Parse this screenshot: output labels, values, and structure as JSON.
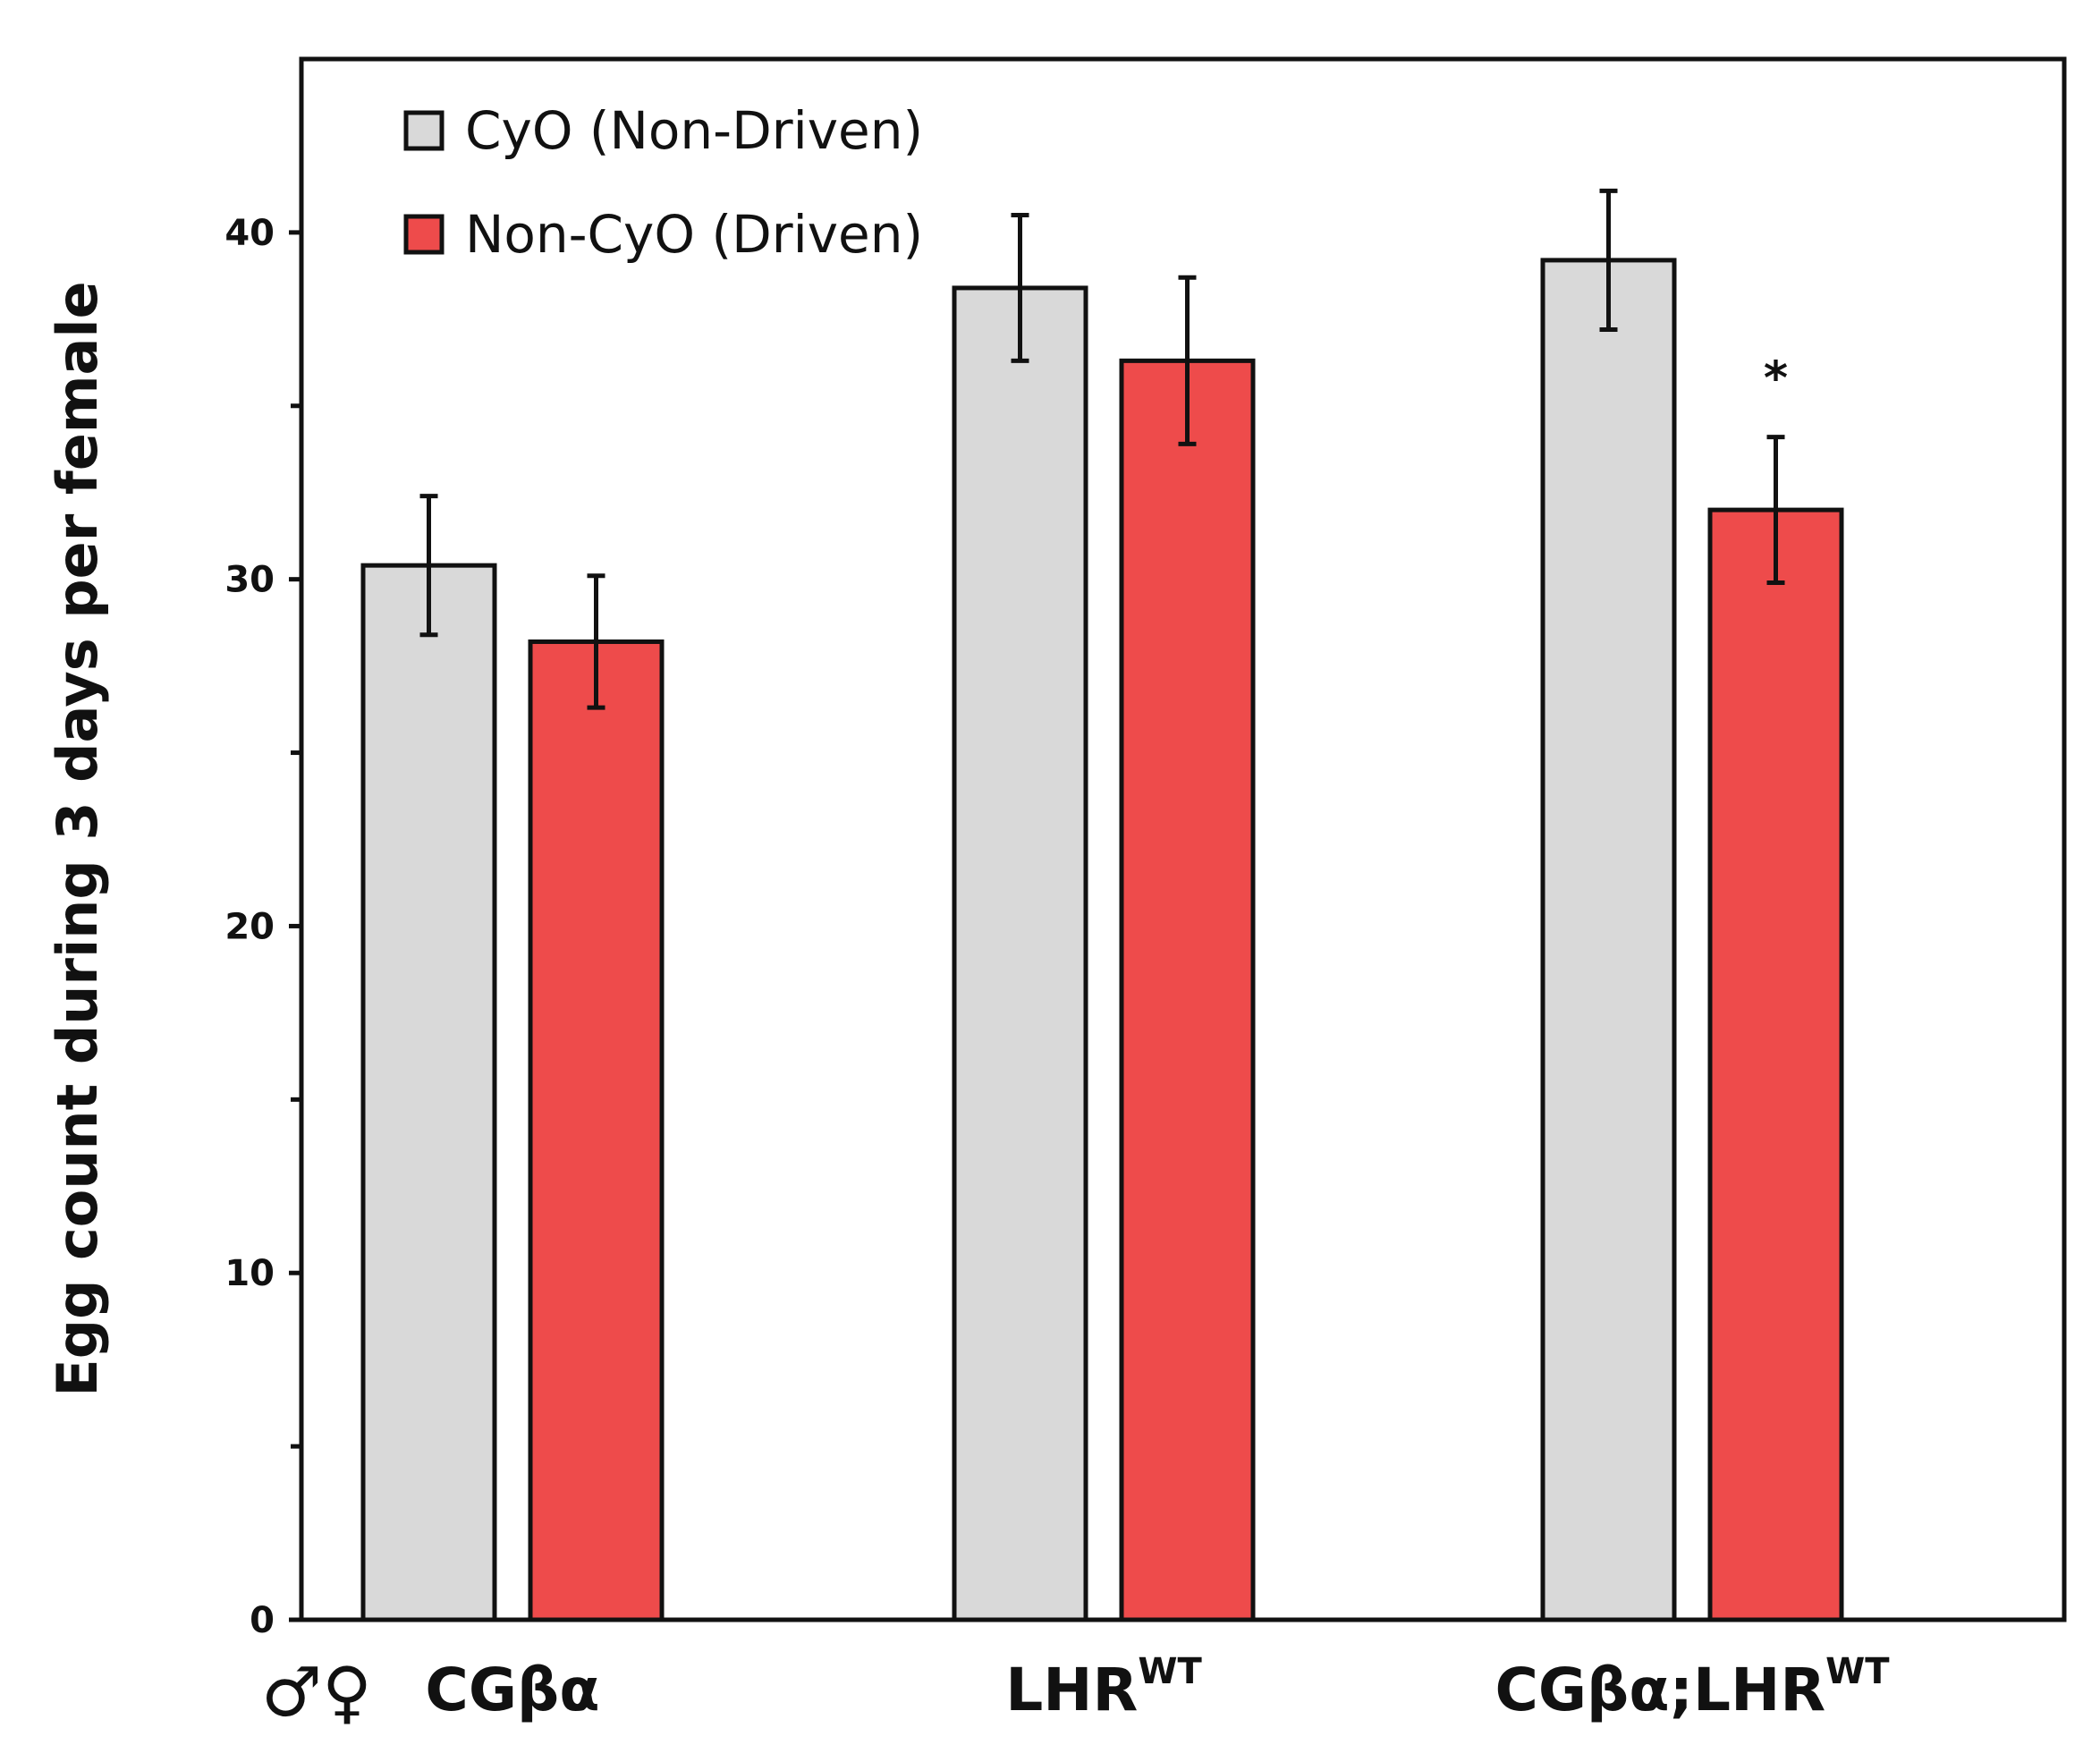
{
  "chart_data": {
    "type": "bar",
    "title": "",
    "xlabel": "",
    "ylabel": "Egg count during 3 days per female",
    "ylim": [
      0,
      45
    ],
    "yticks": [
      0,
      10,
      20,
      30,
      40
    ],
    "minor_ticks": [
      5,
      15,
      25,
      35
    ],
    "grid": false,
    "legend_position": "top-left",
    "row_label": "♂♀",
    "categories": [
      {
        "main": "CGβα",
        "sup": ""
      },
      {
        "main": "LHR",
        "sup": "WT"
      },
      {
        "main": "CGβα;LHR",
        "sup": "WT"
      }
    ],
    "series": [
      {
        "name": "CyO (Non-Driven)",
        "color": "#d9d9d9",
        "values": [
          30.4,
          38.4,
          39.2
        ],
        "errors": [
          2.0,
          2.1,
          2.0
        ]
      },
      {
        "name": "Non-CyO (Driven)",
        "color": "#ee4b4b",
        "values": [
          28.2,
          36.3,
          32.0
        ],
        "errors": [
          1.9,
          2.4,
          2.1
        ]
      }
    ],
    "annotations": [
      {
        "text": "*",
        "category_index": 2,
        "series_index": 1
      }
    ]
  }
}
